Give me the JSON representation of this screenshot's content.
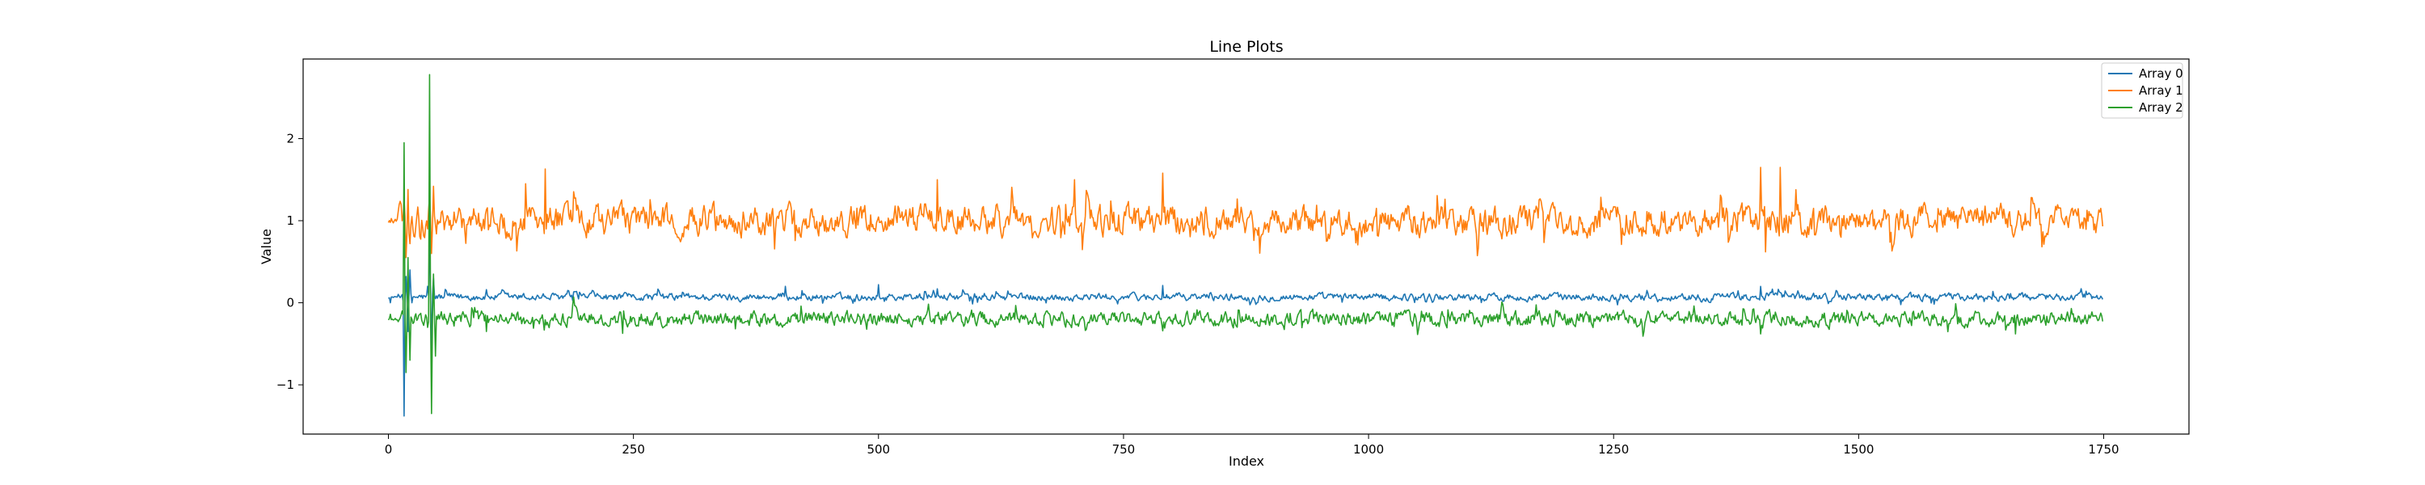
{
  "chart_data": {
    "type": "line",
    "title": "Line Plots",
    "xlabel": "Index",
    "ylabel": "Value",
    "xlim": [
      -87,
      1837
    ],
    "ylim": [
      -1.6,
      2.97
    ],
    "xticks": [
      0,
      250,
      500,
      750,
      1000,
      1250,
      1500,
      1750
    ],
    "yticks": [
      -1,
      0,
      1,
      2
    ],
    "grid": false,
    "legend": "top-right",
    "n_points": 1750,
    "series": [
      {
        "name": "Array 0",
        "color": "#1f77b4",
        "baseline": 0.07,
        "noise": 0.035,
        "spikes": [
          [
            2,
            0.0
          ],
          [
            14,
            0.1
          ],
          [
            16,
            -1.38
          ],
          [
            18,
            0.32
          ],
          [
            20,
            -0.35
          ],
          [
            22,
            0.4
          ],
          [
            24,
            0.0
          ],
          [
            40,
            0.2
          ],
          [
            42,
            0.95
          ],
          [
            44,
            -0.6
          ],
          [
            46,
            0.3
          ],
          [
            48,
            0.05
          ],
          [
            100,
            0.16
          ],
          [
            405,
            0.2
          ],
          [
            500,
            0.22
          ],
          [
            560,
            0.17
          ],
          [
            790,
            0.21
          ],
          [
            1400,
            0.2
          ]
        ]
      },
      {
        "name": "Array 1",
        "color": "#ff7f0e",
        "baseline": 1.0,
        "noise": 0.14,
        "spikes": [
          [
            2,
            0.98
          ],
          [
            14,
            1.0
          ],
          [
            16,
            1.25
          ],
          [
            18,
            0.55
          ],
          [
            20,
            1.38
          ],
          [
            22,
            0.72
          ],
          [
            24,
            1.05
          ],
          [
            40,
            0.9
          ],
          [
            42,
            1.3
          ],
          [
            44,
            0.6
          ],
          [
            46,
            1.42
          ],
          [
            48,
            0.95
          ],
          [
            140,
            1.45
          ],
          [
            160,
            1.63
          ],
          [
            560,
            1.5
          ],
          [
            700,
            1.5
          ],
          [
            790,
            1.58
          ],
          [
            1400,
            1.65
          ],
          [
            1420,
            1.65
          ],
          [
            1405,
            0.62
          ]
        ]
      },
      {
        "name": "Array 2",
        "color": "#2ca02c",
        "baseline": -0.2,
        "noise": 0.07,
        "spikes": [
          [
            2,
            -0.14
          ],
          [
            14,
            -0.1
          ],
          [
            16,
            1.95
          ],
          [
            18,
            -0.85
          ],
          [
            20,
            0.55
          ],
          [
            22,
            -0.7
          ],
          [
            24,
            -0.2
          ],
          [
            40,
            -0.3
          ],
          [
            42,
            2.78
          ],
          [
            44,
            -1.35
          ],
          [
            46,
            0.35
          ],
          [
            48,
            -0.65
          ],
          [
            50,
            -0.2
          ],
          [
            100,
            -0.35
          ],
          [
            240,
            -0.1
          ],
          [
            1400,
            -0.38
          ],
          [
            1660,
            -0.38
          ]
        ]
      }
    ]
  }
}
